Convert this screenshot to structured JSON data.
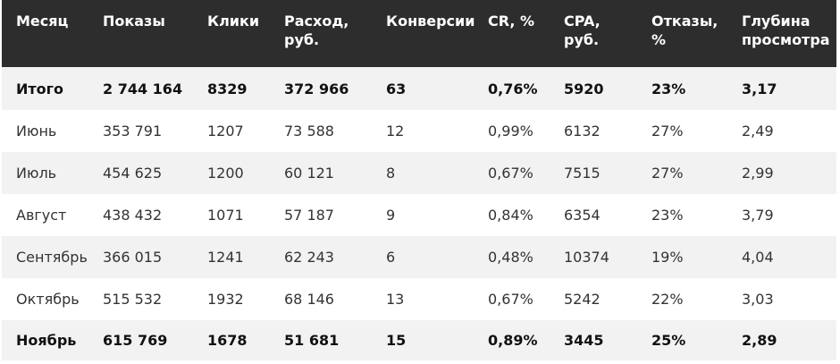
{
  "table": {
    "headers": [
      "Месяц",
      "Показы",
      "Клики",
      "Расход, руб.",
      "Конверсии",
      "CR, %",
      "CPA, руб.",
      "Отказы, %",
      "Глубина просмотра"
    ],
    "rows": [
      {
        "style": "bold",
        "cells": [
          "Итого",
          "2 744 164",
          "8329",
          "372 966",
          "63",
          "0,76%",
          "5920",
          "23%",
          "3,17"
        ]
      },
      {
        "style": "normal",
        "cells": [
          "Июнь",
          "353 791",
          "1207",
          "73 588",
          "12",
          "0,99%",
          "6132",
          "27%",
          "2,49"
        ]
      },
      {
        "style": "normal",
        "cells": [
          "Июль",
          "454 625",
          "1200",
          "60 121",
          "8",
          "0,67%",
          "7515",
          "27%",
          "2,99"
        ]
      },
      {
        "style": "normal",
        "cells": [
          "Август",
          "438 432",
          "1071",
          "57 187",
          "9",
          "0,84%",
          "6354",
          "23%",
          "3,79"
        ]
      },
      {
        "style": "normal",
        "cells": [
          "Сентябрь",
          "366 015",
          "1241",
          "62 243",
          "6",
          "0,48%",
          "10374",
          "19%",
          "4,04"
        ]
      },
      {
        "style": "normal",
        "cells": [
          "Октябрь",
          "515 532",
          "1932",
          "68 146",
          "13",
          "0,67%",
          "5242",
          "22%",
          "3,03"
        ]
      },
      {
        "style": "bold",
        "cells": [
          "Ноябрь",
          "615 769",
          "1678",
          "51 681",
          "15",
          "0,89%",
          "3445",
          "25%",
          "2,89"
        ]
      }
    ]
  },
  "colors": {
    "header_background": "#2d2d2d",
    "header_text": "#ffffff",
    "stripe_background": "#f2f2f2",
    "row_background": "#ffffff"
  }
}
